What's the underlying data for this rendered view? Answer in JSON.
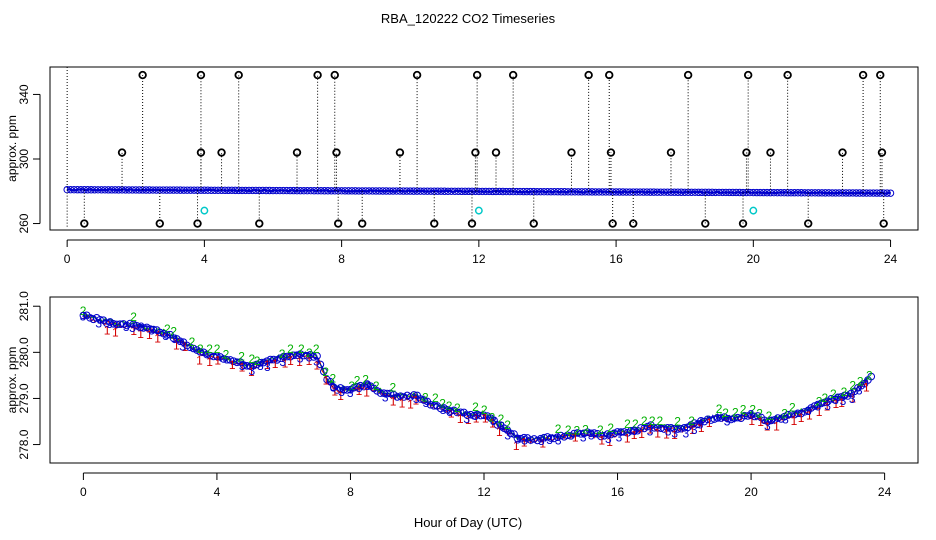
{
  "title": "RBA_120222  CO2 Timeseries",
  "xlabel": "Hour of Day (UTC)",
  "colors": {
    "series1": "#d40000",
    "series2": "#00b000",
    "series3": "#0000cc",
    "flag": "#000000",
    "cyan": "#00c8c8"
  },
  "chart_data": [
    {
      "type": "scatter",
      "ylabel": "approx. ppm",
      "xlim": [
        -0.5,
        24.8
      ],
      "ylim": [
        256,
        357
      ],
      "xticks": [
        "0",
        "4",
        "8",
        "12",
        "16",
        "20",
        "24"
      ],
      "yticks": [
        "260",
        "300",
        "340"
      ],
      "grid": false,
      "series": [
        {
          "marker": "circle",
          "x": [
            0.5,
            1.6,
            2.2,
            2.7,
            3.8,
            3.9,
            3.9,
            4.5,
            5.0,
            5.6,
            6.7,
            7.3,
            7.8,
            7.85,
            7.9,
            8.6,
            9.7,
            10.2,
            10.7,
            11.8,
            11.9,
            11.95,
            12.5,
            13.0,
            13.6,
            14.7,
            15.2,
            15.8,
            15.85,
            15.9,
            16.5,
            17.6,
            18.1,
            18.6,
            19.7,
            19.8,
            19.85,
            20.5,
            21.0,
            21.6,
            22.6,
            23.2,
            23.7,
            23.75,
            23.8
          ],
          "y": [
            260,
            304,
            352,
            260,
            260,
            304,
            352,
            304,
            352,
            260,
            304,
            352,
            352,
            304,
            260,
            260,
            304,
            352,
            260,
            260,
            304,
            352,
            304,
            352,
            260,
            304,
            352,
            352,
            304,
            260,
            260,
            304,
            352,
            260,
            260,
            304,
            352,
            304,
            352,
            260,
            304,
            352,
            352,
            304,
            260
          ]
        },
        {
          "marker": "circle",
          "x": [
            4.0,
            12.0,
            20.0
          ],
          "y": [
            268,
            268,
            268
          ]
        }
      ]
    },
    {
      "type": "scatter",
      "ylabel": "approx. ppm",
      "xlim": [
        -1.0,
        25.0
      ],
      "ylim": [
        277.6,
        281.2
      ],
      "xticks": [
        "0",
        "4",
        "8",
        "12",
        "16",
        "20",
        "24"
      ],
      "yticks": [
        "278.0",
        "279.0",
        "280.0",
        "281.0"
      ],
      "grid": false,
      "anchors": {
        "x": [
          0,
          0.5,
          1,
          1.5,
          2,
          2.5,
          3,
          3.5,
          4,
          4.5,
          5,
          5.5,
          6,
          6.5,
          7,
          7.3,
          7.6,
          8,
          8.5,
          9,
          9.5,
          10,
          10.5,
          11,
          11.5,
          12,
          12.5,
          13,
          13.5,
          14,
          14.5,
          15,
          15.5,
          16,
          16.5,
          17,
          17.5,
          18,
          18.5,
          19,
          19.5,
          20,
          20.5,
          21,
          21.5,
          22,
          22.5,
          23,
          23.5,
          23.7
        ],
        "y": [
          280.8,
          280.7,
          280.6,
          280.6,
          280.5,
          280.4,
          280.2,
          280.0,
          279.9,
          279.8,
          279.7,
          279.8,
          279.9,
          279.95,
          279.9,
          279.4,
          279.2,
          279.2,
          279.3,
          279.1,
          279.05,
          279.05,
          278.85,
          278.75,
          278.65,
          278.65,
          278.4,
          278.15,
          278.1,
          278.15,
          278.2,
          278.25,
          278.2,
          278.25,
          278.3,
          278.4,
          278.35,
          278.35,
          278.5,
          278.6,
          278.55,
          278.65,
          278.5,
          278.6,
          278.7,
          278.85,
          279.0,
          279.1,
          279.4,
          279.55
        ]
      },
      "series": [
        {
          "name": "1",
          "marker": "text"
        },
        {
          "name": "2",
          "marker": "text"
        },
        {
          "name": "3",
          "marker": "text"
        }
      ]
    }
  ]
}
